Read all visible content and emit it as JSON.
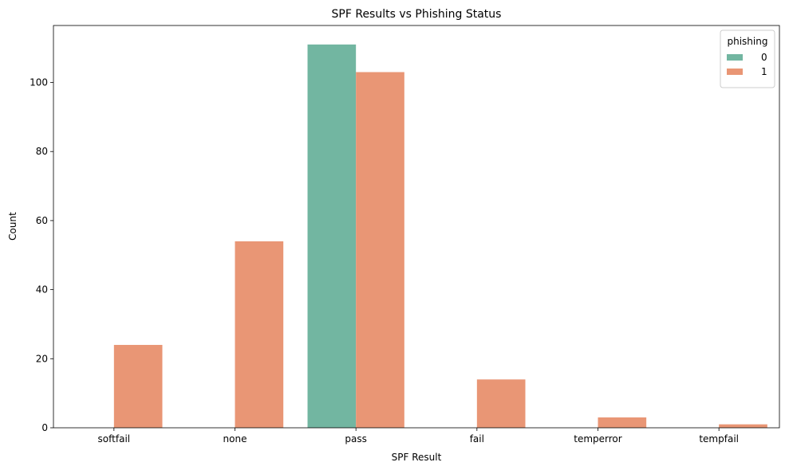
{
  "chart_data": {
    "type": "bar",
    "title": "SPF Results vs Phishing Status",
    "xlabel": "SPF Result",
    "ylabel": "Count",
    "categories": [
      "softfail",
      "none",
      "pass",
      "fail",
      "temperror",
      "tempfail"
    ],
    "series": [
      {
        "name": "0",
        "color": "#72b6a1",
        "values": [
          0,
          0,
          111,
          0,
          0,
          0
        ]
      },
      {
        "name": "1",
        "color": "#e99675",
        "values": [
          24,
          54,
          103,
          14,
          3,
          1
        ]
      }
    ],
    "ylim": [
      0,
      116.5
    ],
    "yticks": [
      0,
      20,
      40,
      60,
      80,
      100
    ],
    "legend": {
      "title": "phishing",
      "placement": "top-right"
    },
    "grid": false
  }
}
